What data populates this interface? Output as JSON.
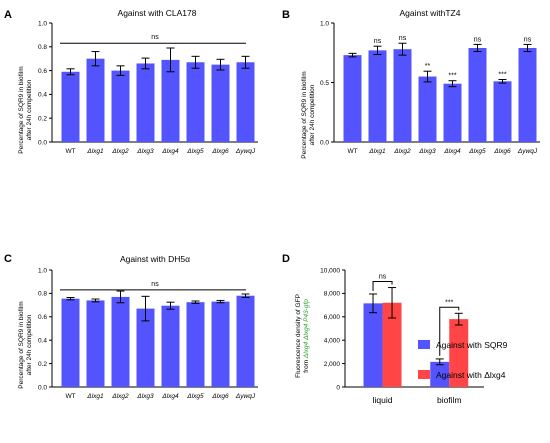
{
  "panels": {
    "A": {
      "letter": "A",
      "title": "Against with CLA178",
      "ylabel_lines": [
        "Percentage of SQR9 in biofilm",
        "after 24h competition"
      ]
    },
    "B": {
      "letter": "B",
      "title": "Against withTZ4",
      "ylabel_lines": [
        "Percentage of SQR9 in biofilm",
        "after 24h competition"
      ]
    },
    "C": {
      "letter": "C",
      "title": "Against with DH5α",
      "ylabel_lines": [
        "Percentage of SQR9 in biofilm",
        "after 24h competition"
      ]
    },
    "D": {
      "letter": "D",
      "title": "",
      "ylabel_lines": [
        "Fluorescence density of GFP",
        "from Δlxg4 Δlxg4 P43-gfp"
      ]
    }
  },
  "colors": {
    "blue": "#5454ff",
    "red": "#ff4545",
    "green_text": "#2ca02c"
  },
  "chart_data": [
    {
      "id": "A",
      "type": "bar",
      "title": "Against with CLA178",
      "ylabel": "Percentage of SQR9 in biofilm after 24h competition",
      "ylim": [
        0,
        1.0
      ],
      "yticks": [
        "0.0",
        "0.2",
        "0.4",
        "0.6",
        "0.8",
        "1.0"
      ],
      "categories": [
        "WT",
        "Δlxg1",
        "Δlxg2",
        "Δlxg3",
        "Δlxg4",
        "Δlxg5",
        "Δlxg6",
        "ΔywqJ"
      ],
      "values": [
        0.59,
        0.7,
        0.6,
        0.66,
        0.69,
        0.67,
        0.65,
        0.67
      ],
      "errors": [
        0.025,
        0.06,
        0.04,
        0.045,
        0.1,
        0.05,
        0.045,
        0.05
      ],
      "annotation": "ns"
    },
    {
      "id": "B",
      "type": "bar",
      "title": "Against withTZ4",
      "ylabel": "Percentage of SQR9 in biofilm after 24h competition",
      "ylim": [
        0,
        1.0
      ],
      "yticks": [
        "0.0",
        "0.5",
        "1.0"
      ],
      "categories": [
        "WT",
        "Δlxg1",
        "Δlxg2",
        "Δlxg3",
        "Δlxg4",
        "Δlxg5",
        "Δlxg6",
        "ΔywqJ"
      ],
      "values": [
        0.73,
        0.77,
        0.78,
        0.55,
        0.49,
        0.79,
        0.51,
        0.79
      ],
      "errors": [
        0.015,
        0.035,
        0.05,
        0.045,
        0.025,
        0.03,
        0.015,
        0.03
      ],
      "significance": [
        "",
        "ns",
        "ns",
        "**",
        "***",
        "ns",
        "***",
        "ns"
      ]
    },
    {
      "id": "C",
      "type": "bar",
      "title": "Against with DH5α",
      "ylabel": "Percentage of SQR9 in biofilm after 24h competition",
      "ylim": [
        0,
        1.0
      ],
      "yticks": [
        "0.0",
        "0.2",
        "0.4",
        "0.6",
        "0.8",
        "1.0"
      ],
      "categories": [
        "WT",
        "Δlxg1",
        "Δlxg2",
        "Δlxg3",
        "Δlxg4",
        "Δlxg5",
        "Δlxg6",
        "ΔywqJ"
      ],
      "values": [
        0.755,
        0.74,
        0.77,
        0.67,
        0.695,
        0.725,
        0.73,
        0.78
      ],
      "errors": [
        0.01,
        0.012,
        0.05,
        0.105,
        0.03,
        0.01,
        0.01,
        0.015
      ],
      "annotation": "ns"
    },
    {
      "id": "D",
      "type": "bar",
      "title": "",
      "ylabel": "Fluorescence density of GFP from Δlxg4 Δlxg4 P43-gfp",
      "ylim": [
        0,
        10000
      ],
      "yticks": [
        "0",
        "2,000",
        "4,000",
        "6,000",
        "8,000",
        "10,000"
      ],
      "categories": [
        "liquid",
        "biofilm"
      ],
      "series": [
        {
          "name": "Against with SQR9",
          "values": [
            7150,
            2150
          ],
          "errors": [
            800,
            250
          ]
        },
        {
          "name": "Against with Δlxg4",
          "values": [
            7200,
            5800
          ],
          "errors": [
            1300,
            500
          ]
        }
      ],
      "significance": [
        "ns",
        "***"
      ],
      "legend": [
        "Against with SQR9",
        "Against with Δlxg4"
      ],
      "legend_position": "top-right"
    }
  ]
}
